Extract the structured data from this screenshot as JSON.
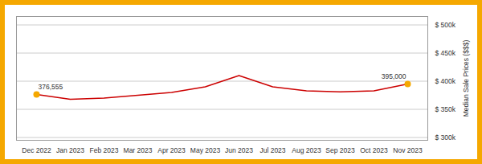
{
  "chart_data": {
    "type": "line",
    "categories": [
      "Dec 2022",
      "Jan 2023",
      "Feb 2023",
      "Mar 2023",
      "Apr 2023",
      "May 2023",
      "Jun 2023",
      "Jul 2023",
      "Aug 2023",
      "Sep 2023",
      "Oct 2023",
      "Nov 2023"
    ],
    "values": [
      376555,
      368000,
      370000,
      375000,
      380000,
      390000,
      410000,
      390000,
      383000,
      381000,
      383000,
      395000
    ],
    "color": "#CC0000",
    "ylabel": "Median Sale Prices ($$$)",
    "ylim": [
      295000,
      515000
    ],
    "yticks": [
      {
        "value": 300000,
        "label": "$ 300k"
      },
      {
        "value": 350000,
        "label": "$ 350k"
      },
      {
        "value": 400000,
        "label": "$ 400k"
      },
      {
        "value": 450000,
        "label": "$ 450k"
      },
      {
        "value": 500000,
        "label": "$ 500k"
      }
    ],
    "grid": true,
    "annotations": [
      {
        "text": "376,555",
        "x": "Dec 2022",
        "y": 376555,
        "color": "#F5A800"
      },
      {
        "text": "395,000",
        "x": "Nov 2023",
        "y": 395000,
        "color": "#F5A800"
      }
    ]
  }
}
